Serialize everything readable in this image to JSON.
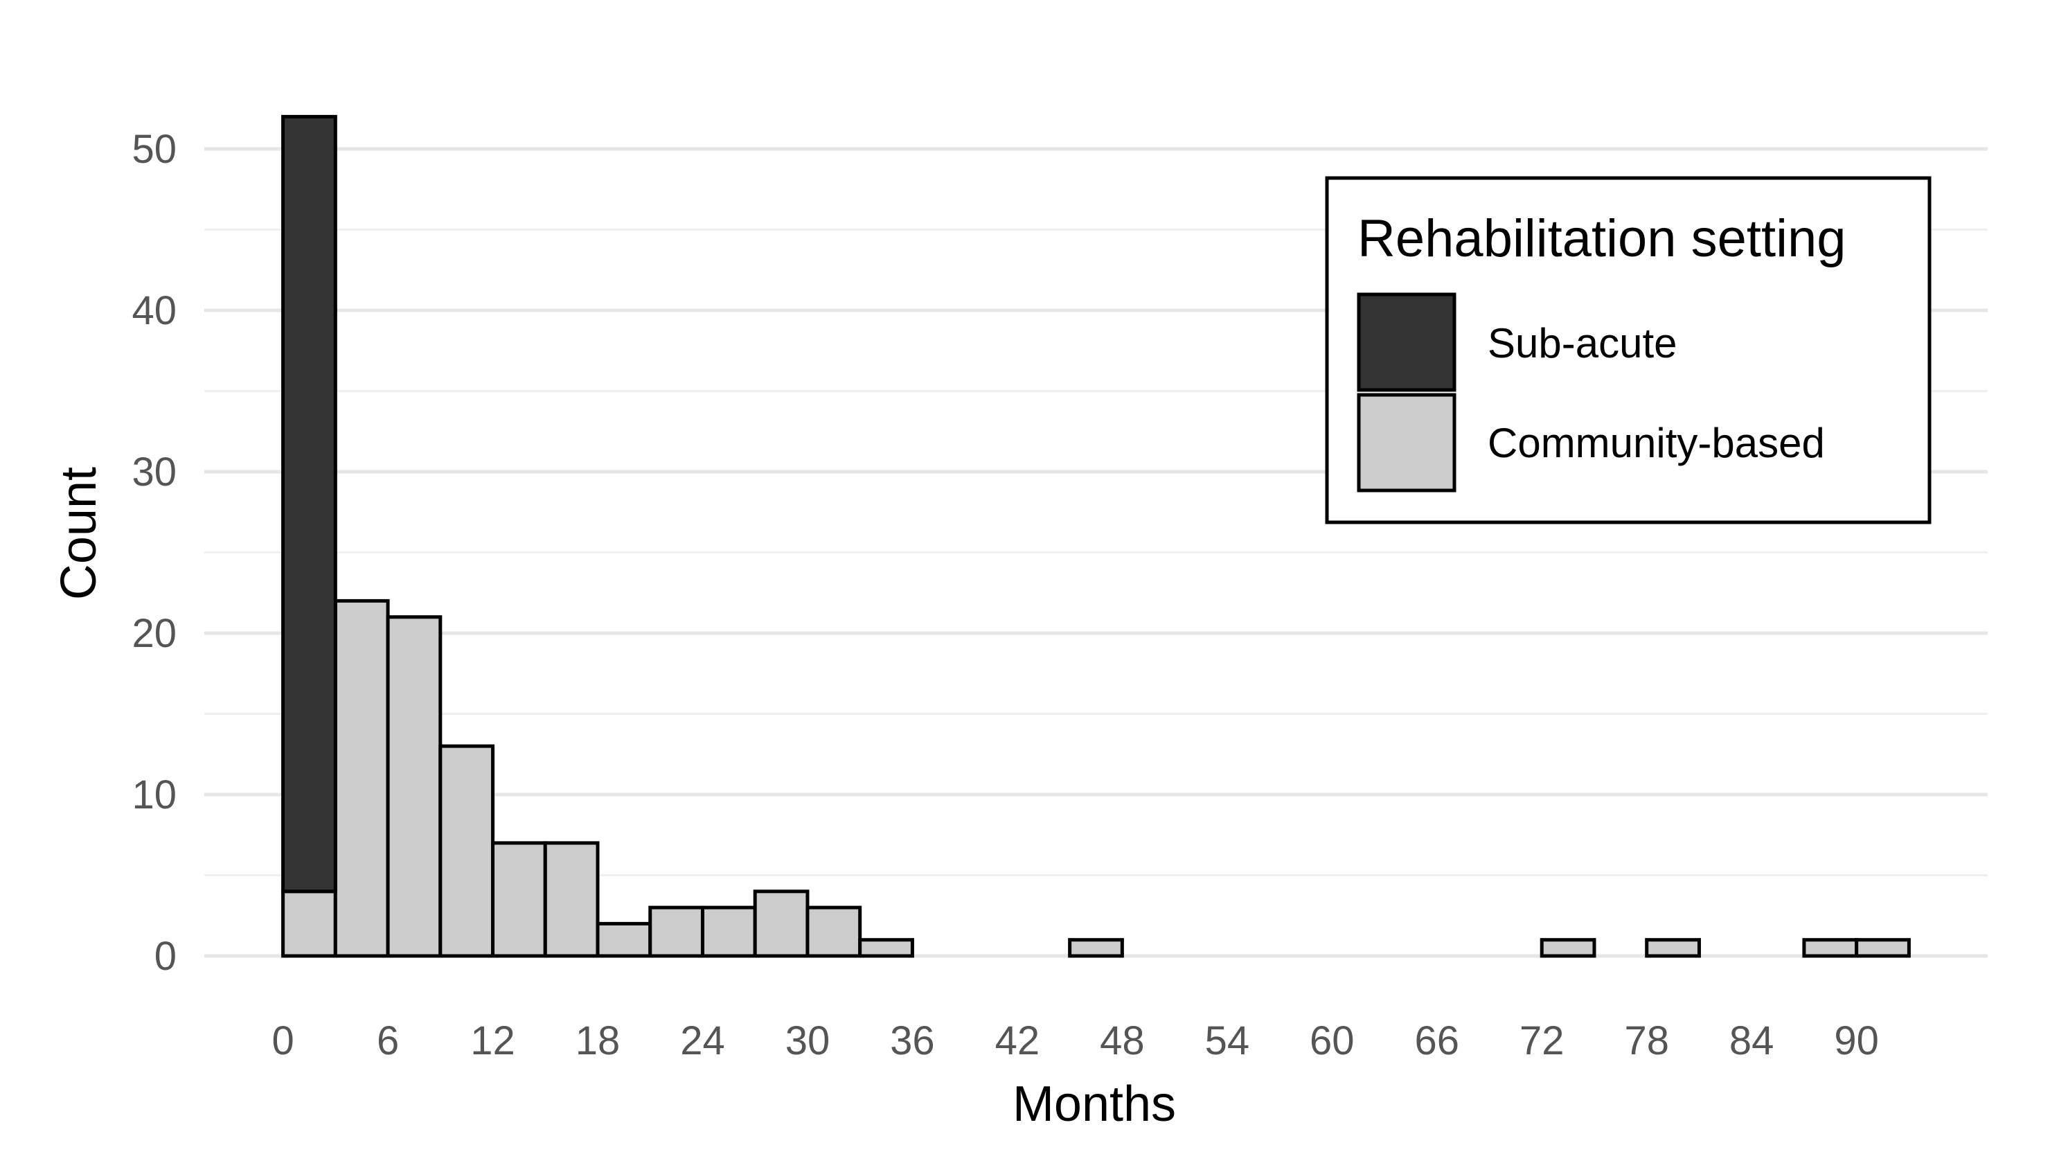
{
  "chart_data": {
    "type": "bar",
    "subtype": "stacked-histogram",
    "title": "",
    "xlabel": "Months",
    "ylabel": "Count",
    "xlim": [
      -4.5,
      97.5
    ],
    "ylim": [
      0,
      52
    ],
    "bin_width": 3,
    "x_ticks": [
      0,
      6,
      12,
      18,
      24,
      30,
      36,
      42,
      48,
      54,
      60,
      66,
      72,
      78,
      84,
      90
    ],
    "y_ticks": [
      0,
      10,
      20,
      30,
      40,
      50
    ],
    "y_minor_ticks": [
      5,
      15,
      25,
      35,
      45
    ],
    "grid": true,
    "legend": {
      "title": "Rehabilitation setting",
      "position": "top-right",
      "entries": [
        {
          "name": "Sub-acute",
          "color": "#333333"
        },
        {
          "name": "Community-based",
          "color": "#cccccc"
        }
      ]
    },
    "bin_starts": [
      0,
      3,
      6,
      9,
      12,
      15,
      18,
      21,
      24,
      27,
      30,
      33,
      36,
      39,
      42,
      45,
      48,
      51,
      54,
      57,
      60,
      63,
      66,
      69,
      72,
      75,
      78,
      81,
      84,
      87,
      90
    ],
    "series": [
      {
        "name": "Community-based",
        "color": "#cccccc",
        "values": [
          4,
          22,
          21,
          13,
          7,
          7,
          2,
          3,
          3,
          4,
          3,
          1,
          0,
          0,
          0,
          1,
          0,
          0,
          0,
          0,
          0,
          0,
          0,
          0,
          1,
          0,
          1,
          0,
          0,
          1,
          1
        ]
      },
      {
        "name": "Sub-acute",
        "color": "#333333",
        "values": [
          48,
          0,
          0,
          0,
          0,
          0,
          0,
          0,
          0,
          0,
          0,
          0,
          0,
          0,
          0,
          0,
          0,
          0,
          0,
          0,
          0,
          0,
          0,
          0,
          0,
          0,
          0,
          0,
          0,
          0,
          0
        ]
      }
    ]
  }
}
